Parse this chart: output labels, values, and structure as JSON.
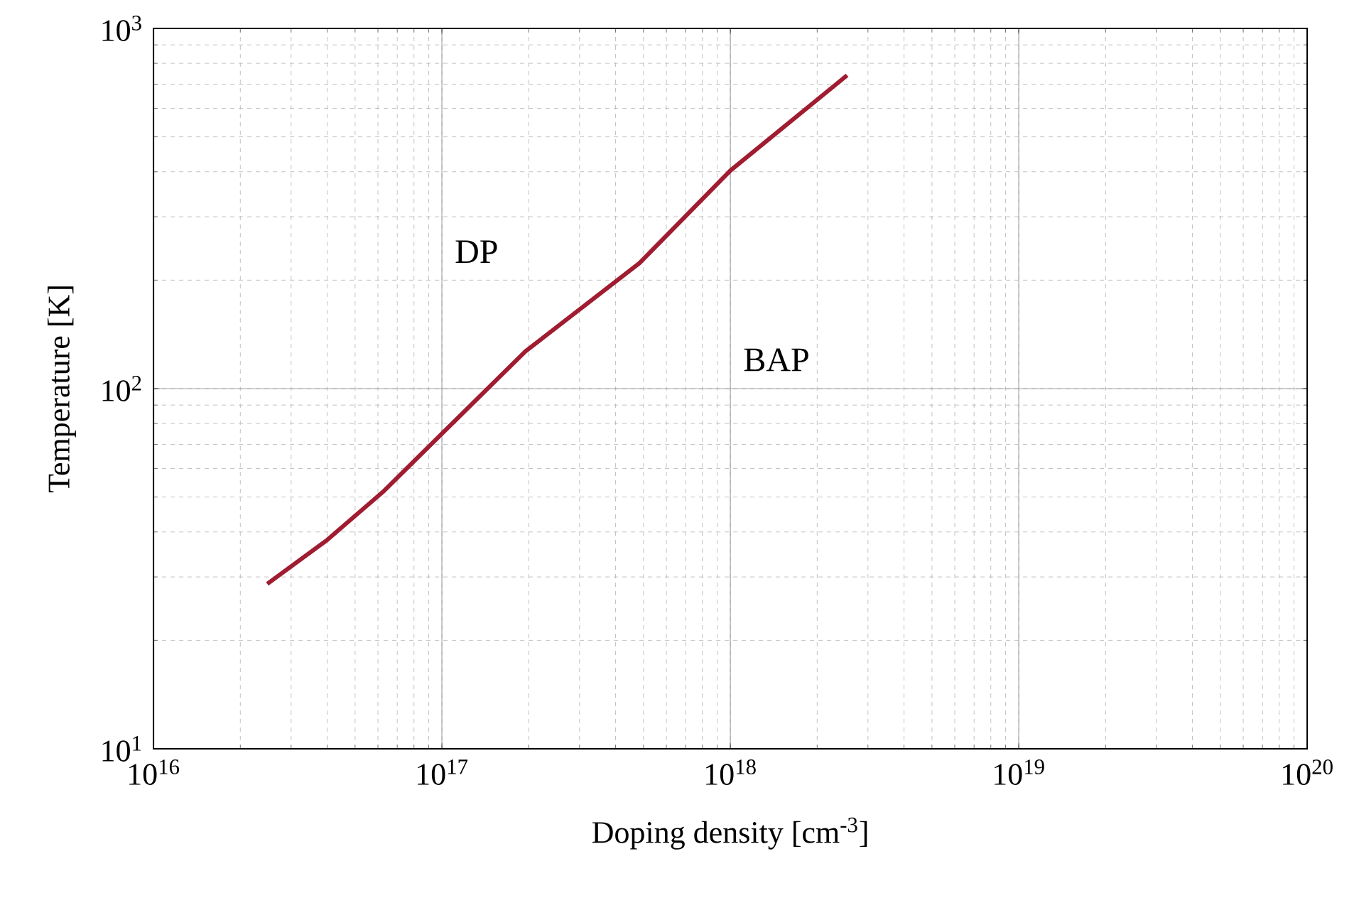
{
  "chart_data": {
    "type": "line",
    "xlabel": "Doping density [cm$^{-3}$]",
    "ylabel": "Temperature [K]",
    "x": [
      2.48e+16,
      4e+16,
      6.3e+16,
      1e+17,
      1.95e+17,
      4.84e+17,
      1e+18,
      2.54e+18
    ],
    "series": [
      {
        "color": "#a01c30",
        "values": [
          28.7,
          38,
          52,
          75,
          127,
          223,
          403,
          741
        ]
      }
    ],
    "log": "xy",
    "grid": true,
    "marker": "none",
    "line_style": "solid",
    "xlim": [
      1e+16,
      1e+20
    ],
    "ylim": [
      10,
      1000
    ],
    "xticks": [
      {
        "value": 1e+16,
        "label": "10$^{16}$"
      },
      {
        "value": 1e+17,
        "label": "10$^{17}$"
      },
      {
        "value": 1e+18,
        "label": "10$^{18}$"
      },
      {
        "value": 1e+19,
        "label": "10$^{19}$"
      },
      {
        "value": 1e+20,
        "label": "10$^{20}$"
      }
    ],
    "yticks": [
      {
        "value": 10,
        "label": "10$^{1}$"
      },
      {
        "value": 100,
        "label": "10$^{2}$"
      },
      {
        "value": 1000,
        "label": "10$^{3}$"
      }
    ],
    "annotations": [
      "DP",
      "BAP"
    ]
  }
}
